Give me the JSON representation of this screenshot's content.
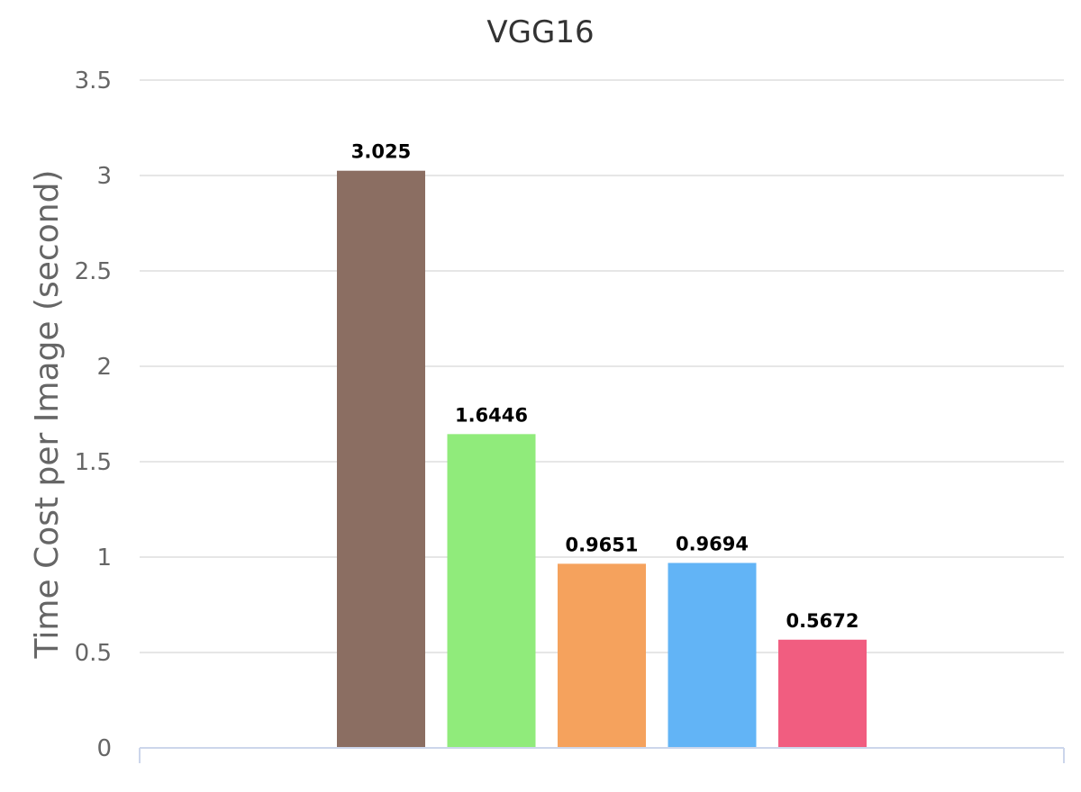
{
  "chart_data": {
    "type": "bar",
    "title": "VGG16",
    "xlabel": "",
    "ylabel": "Time Cost per Image (second)",
    "ylim": [
      0,
      3.5
    ],
    "yticks": [
      0,
      0.5,
      1,
      1.5,
      2,
      2.5,
      3,
      3.5
    ],
    "ytick_labels": [
      "0",
      "0.5",
      "1",
      "1.5",
      "2",
      "2.5",
      "3",
      "3.5"
    ],
    "grid": true,
    "legend": "none",
    "bars": [
      {
        "value": 3.025,
        "label": "3.025",
        "color": "#8B6E62"
      },
      {
        "value": 1.6446,
        "label": "1.6446",
        "color": "#90EB7B"
      },
      {
        "value": 0.9651,
        "label": "0.9651",
        "color": "#F5A25D"
      },
      {
        "value": 0.9694,
        "label": "0.9694",
        "color": "#62B4F6"
      },
      {
        "value": 0.5672,
        "label": "0.5672",
        "color": "#F15D80"
      }
    ]
  },
  "colors": {
    "grid": "#e6e6e6",
    "axis": "#ccd6eb"
  }
}
